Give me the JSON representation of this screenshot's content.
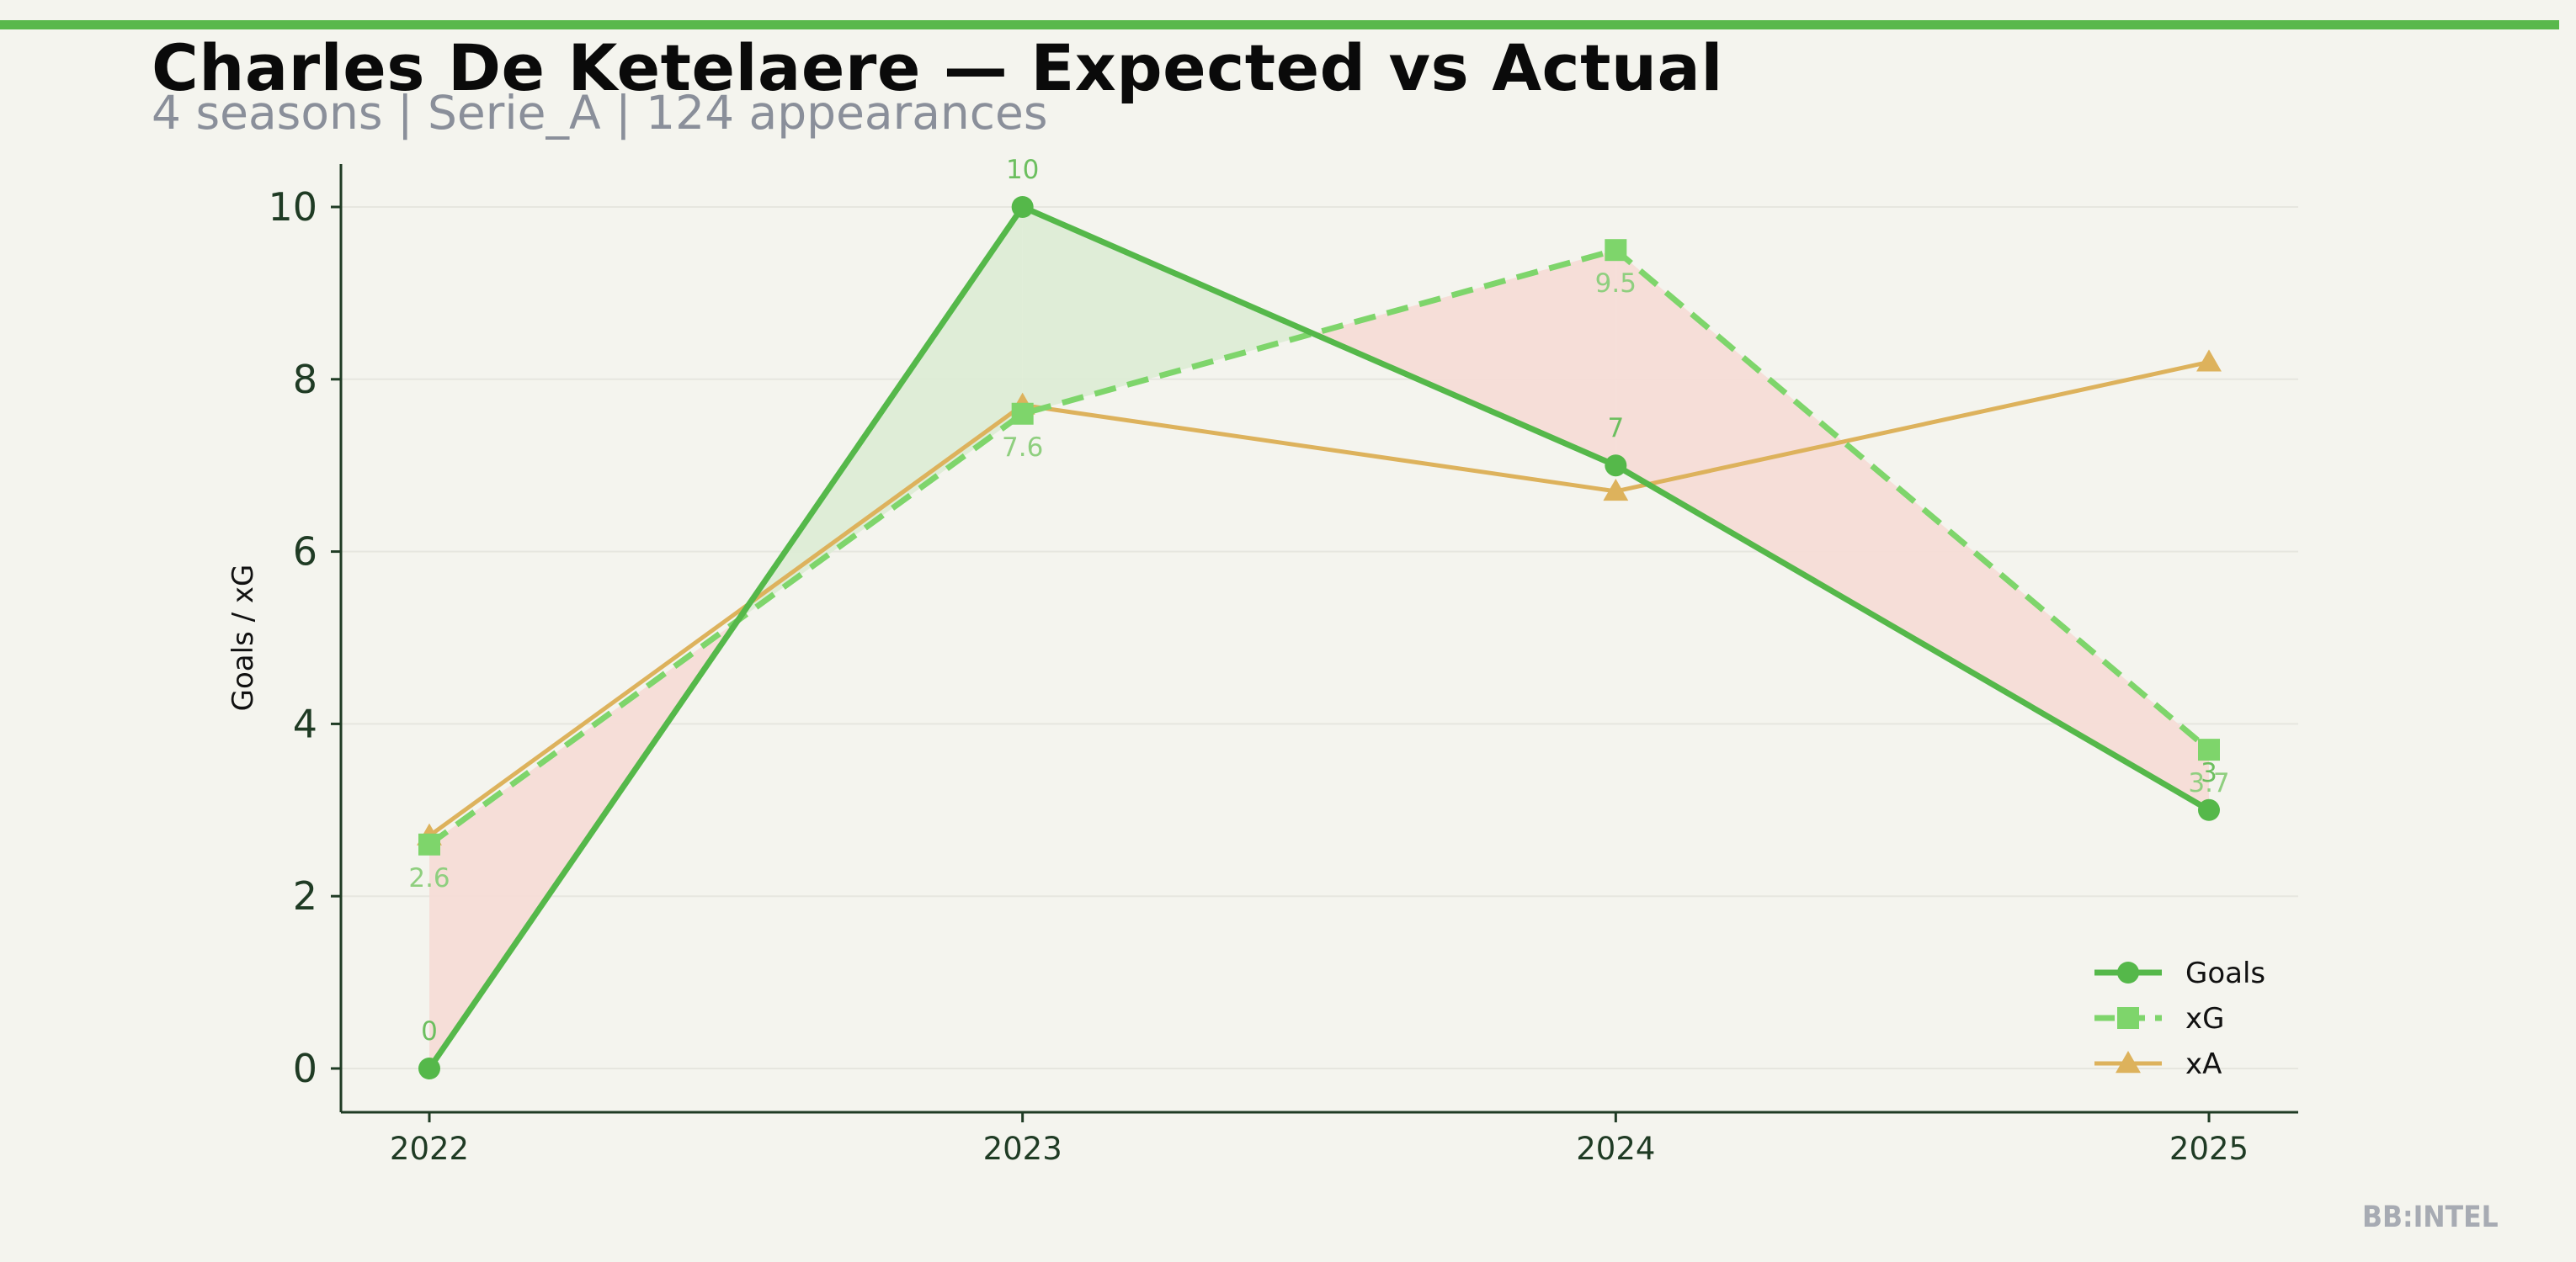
{
  "header": {
    "title": "Charles De Ketelaere — Expected vs Actual",
    "subtitle": "4 seasons | Serie_A | 124 appearances"
  },
  "watermark": "BB:INTEL",
  "colors": {
    "accent": "#59b84c",
    "goals": "#55b84a",
    "xg": "#7ed56b",
    "xa": "#ddb25c",
    "fill_over": "#ddecd5",
    "fill_under": "#f5dcd6",
    "axis": "#1f3b24",
    "background": "#f4f4ee"
  },
  "chart_data": {
    "type": "line",
    "title": "Charles De Ketelaere — Expected vs Actual",
    "subtitle": "4 seasons | Serie_A | 124 appearances",
    "xlabel": "",
    "ylabel": "Goals / xG",
    "x": [
      2022,
      2023,
      2024,
      2025
    ],
    "x_tick_labels": [
      "2022",
      "2023",
      "2024",
      "2025"
    ],
    "ylim": [
      -0.5,
      10.5
    ],
    "y_ticks": [
      0,
      2,
      4,
      6,
      8,
      10
    ],
    "grid": true,
    "legend_position": "bottom-right",
    "series": [
      {
        "name": "Goals",
        "values": [
          0,
          10,
          7,
          3
        ],
        "labels": [
          "0",
          "10",
          "7",
          "3"
        ],
        "marker": "circle",
        "style": "solid"
      },
      {
        "name": "xG",
        "values": [
          2.6,
          7.6,
          9.5,
          3.7
        ],
        "labels": [
          "2.6",
          "7.6",
          "9.5",
          "3.7"
        ],
        "marker": "square",
        "style": "dashed"
      },
      {
        "name": "xA",
        "values": [
          2.7,
          7.7,
          6.7,
          8.2
        ],
        "marker": "triangle",
        "style": "solid"
      }
    ]
  }
}
